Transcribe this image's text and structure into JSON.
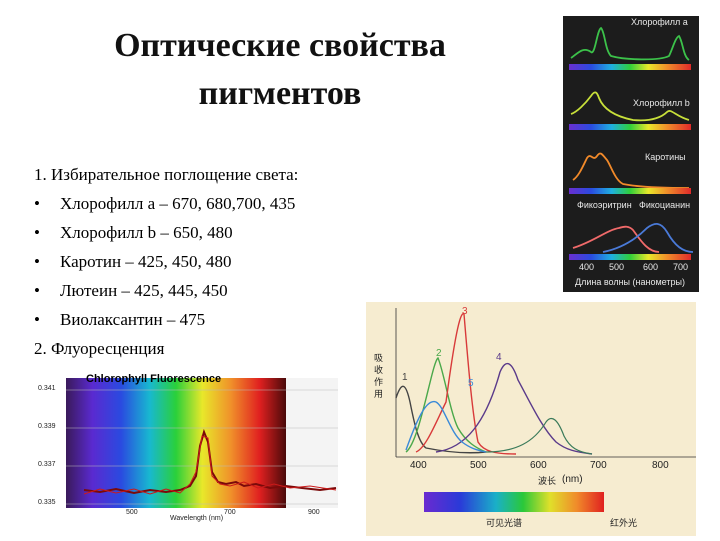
{
  "title": "Оптические свойства пигментов",
  "text": {
    "item1": "1. Избирательное поглощение света:",
    "bullets": [
      "Хлорофилл а – 670, 680,700, 435",
      "Хлорофилл b – 650, 480",
      "Каротин – 425, 450, 480",
      "Лютеин – 425, 445, 450",
      "Виолаксантин – 475"
    ],
    "bullet_char": "•",
    "item2": "2. Флуоресценция"
  },
  "absorption_panel": {
    "labels": [
      "Хлорофилл а",
      "Хлорофилл b",
      "Каротины",
      "Фикоэритрин",
      "Фикоцианин"
    ],
    "axis_ticks": [
      "400",
      "500",
      "600",
      "700"
    ],
    "axis_label": "Длина волны (нанометры)",
    "colors": {
      "chl_a": "#3cc24a",
      "chl_b": "#c8e03a",
      "carot": "#f28a2a",
      "phycoery": "#f06a6a",
      "phycocy": "#4a7ad8",
      "bg": "#1c1c1c"
    }
  },
  "fluorescence_chart": {
    "title": "Chlorophyll Fluorescence",
    "xlabel": "Wavelength (nm)",
    "x_ticks": [
      "500",
      "700",
      "900"
    ],
    "y_ticks": [
      "0.341",
      "0.339",
      "0.337",
      "0.335"
    ]
  },
  "spectrum_chart": {
    "x_ticks": [
      "400",
      "500",
      "600",
      "700",
      "800"
    ],
    "unit": "(nm)",
    "xlabel": "波长",
    "curve_numbers": [
      "1",
      "2",
      "3",
      "4",
      "5"
    ],
    "band_left": "可见光谱",
    "band_right": "红外光",
    "ylabel": "吸收作用",
    "colors": {
      "c1": "#444444",
      "c2": "#4aa84a",
      "c3": "#d83a3a",
      "c4": "#5a3a8a",
      "c5": "#3a8ad8"
    }
  }
}
